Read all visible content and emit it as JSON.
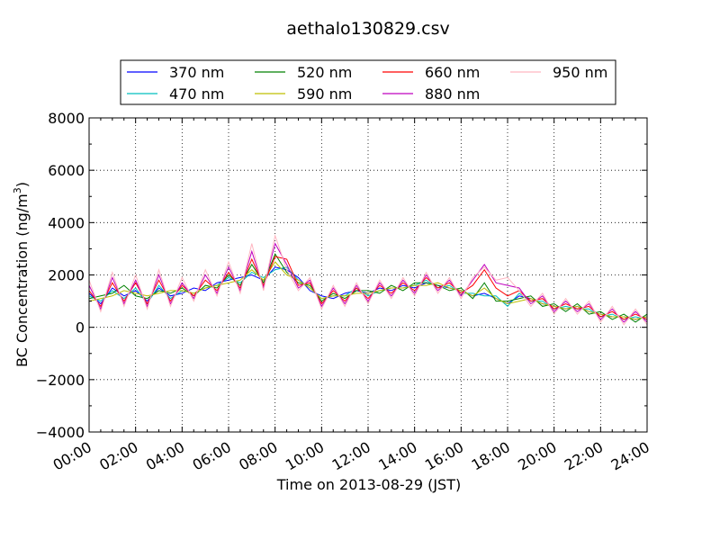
{
  "chart_data": {
    "type": "line",
    "title": "aethalo130829.csv",
    "xlabel": "Time on 2013-08-29 (JST)",
    "ylabel": "BC Concentration (ng/m",
    "ylabel_sup": "3",
    "ylabel_end": ")",
    "xlim": [
      "00:00",
      "24:00"
    ],
    "ylim": [
      -4000,
      8000
    ],
    "x_ticks": [
      "00:00",
      "02:00",
      "04:00",
      "06:00",
      "08:00",
      "10:00",
      "12:00",
      "14:00",
      "16:00",
      "18:00",
      "20:00",
      "22:00",
      "24:00"
    ],
    "y_ticks": [
      -4000,
      -2000,
      0,
      2000,
      4000,
      6000,
      8000
    ],
    "y_tick_labels": [
      "−4000",
      "−2000",
      "0",
      "2000",
      "4000",
      "6000",
      "8000"
    ],
    "grid": true,
    "legend_position": "top-center",
    "x_hours": [
      0,
      0.5,
      1,
      1.5,
      2,
      2.5,
      3,
      3.5,
      4,
      4.5,
      5,
      5.5,
      6,
      6.5,
      7,
      7.5,
      8,
      8.5,
      9,
      9.5,
      10,
      10.5,
      11,
      11.5,
      12,
      12.5,
      13,
      13.5,
      14,
      14.5,
      15,
      15.5,
      16,
      16.5,
      17,
      17.5,
      18,
      18.5,
      19,
      19.5,
      20,
      20.5,
      21,
      21.5,
      22,
      22.5,
      23,
      23.5,
      24
    ],
    "series": [
      {
        "name": "370 nm",
        "color": "#0000ff",
        "values": [
          1300,
          900,
          1500,
          1200,
          1400,
          1000,
          1500,
          1200,
          1300,
          1500,
          1400,
          1700,
          1800,
          1900,
          2000,
          1800,
          2300,
          2200,
          1900,
          1400,
          1200,
          1100,
          1300,
          1400,
          1300,
          1500,
          1400,
          1600,
          1500,
          1700,
          1600,
          1500,
          1400,
          1200,
          1300,
          1100,
          900,
          1200,
          1100,
          900,
          800,
          700,
          800,
          600,
          500,
          400,
          400,
          300,
          400
        ]
      },
      {
        "name": "470 nm",
        "color": "#00bfbf",
        "values": [
          1200,
          1000,
          1400,
          1100,
          1500,
          900,
          1600,
          1100,
          1400,
          1300,
          1500,
          1600,
          1900,
          1700,
          2100,
          1900,
          2200,
          2300,
          1800,
          1500,
          1100,
          1200,
          1200,
          1500,
          1200,
          1400,
          1500,
          1500,
          1600,
          1800,
          1500,
          1600,
          1300,
          1300,
          1200,
          1200,
          800,
          1300,
          1000,
          1000,
          700,
          800,
          700,
          700,
          400,
          500,
          300,
          400,
          300
        ]
      },
      {
        "name": "520 nm",
        "color": "#008000",
        "values": [
          1100,
          1200,
          1300,
          1600,
          1200,
          1100,
          1400,
          1300,
          1500,
          1200,
          1600,
          1500,
          2000,
          1600,
          2400,
          1700,
          2800,
          2100,
          1700,
          1600,
          1000,
          1300,
          1100,
          1400,
          1400,
          1300,
          1600,
          1400,
          1700,
          1700,
          1600,
          1400,
          1500,
          1100,
          1700,
          1000,
          1000,
          1100,
          1200,
          800,
          900,
          600,
          900,
          500,
          600,
          300,
          500,
          200,
          500
        ]
      },
      {
        "name": "590 nm",
        "color": "#bfbf00",
        "values": [
          1000,
          1100,
          1200,
          1400,
          1300,
          1200,
          1300,
          1400,
          1400,
          1300,
          1500,
          1600,
          1700,
          1800,
          2200,
          1800,
          2500,
          2000,
          1800,
          1500,
          1100,
          1200,
          1200,
          1300,
          1300,
          1400,
          1500,
          1500,
          1600,
          1600,
          1700,
          1500,
          1400,
          1200,
          1500,
          1100,
          900,
          1000,
          1100,
          900,
          800,
          700,
          800,
          600,
          500,
          400,
          400,
          300,
          400
        ]
      },
      {
        "name": "660 nm",
        "color": "#ff0000",
        "values": [
          1400,
          800,
          1700,
          1000,
          1700,
          900,
          1800,
          1000,
          1600,
          1200,
          1800,
          1400,
          2100,
          1500,
          2600,
          1600,
          2700,
          2600,
          1600,
          1700,
          900,
          1400,
          1000,
          1500,
          1100,
          1600,
          1300,
          1700,
          1400,
          1900,
          1500,
          1700,
          1300,
          1600,
          2200,
          1500,
          1200,
          1400,
          1000,
          1100,
          700,
          900,
          700,
          800,
          400,
          600,
          300,
          500,
          300
        ]
      },
      {
        "name": "880 nm",
        "color": "#bf00bf",
        "values": [
          1600,
          700,
          1900,
          900,
          1800,
          800,
          2000,
          900,
          1700,
          1100,
          2000,
          1300,
          2300,
          1400,
          2900,
          1500,
          3200,
          2400,
          1500,
          1800,
          800,
          1500,
          900,
          1600,
          1000,
          1700,
          1200,
          1800,
          1300,
          2000,
          1400,
          1800,
          1200,
          1800,
          2400,
          1700,
          1600,
          1500,
          900,
          1200,
          600,
          1000,
          600,
          900,
          300,
          700,
          200,
          600,
          200
        ]
      },
      {
        "name": "950 nm",
        "color": "#ffb6c1",
        "values": [
          1800,
          600,
          2100,
          800,
          2000,
          700,
          2200,
          800,
          1900,
          1000,
          2200,
          1200,
          2500,
          1300,
          3200,
          1400,
          3500,
          2200,
          1400,
          1900,
          700,
          1600,
          800,
          1700,
          900,
          1800,
          1100,
          1900,
          1200,
          2100,
          1300,
          1900,
          1100,
          1900,
          2300,
          1800,
          1900,
          1400,
          800,
          1300,
          500,
          1100,
          500,
          1000,
          200,
          800,
          100,
          700,
          100
        ]
      }
    ]
  }
}
